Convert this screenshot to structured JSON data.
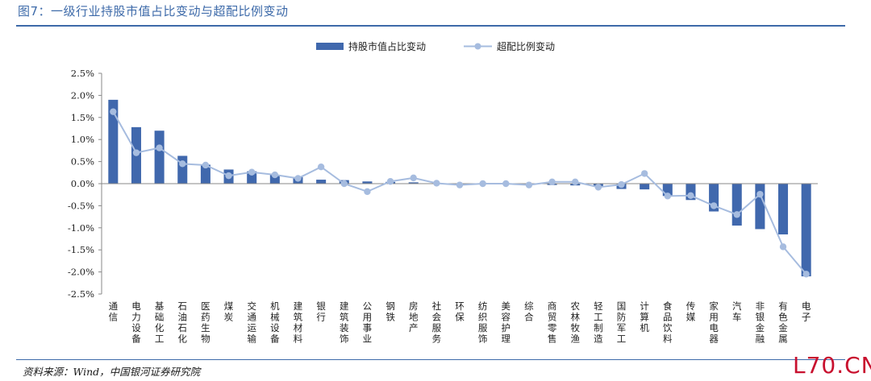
{
  "header": {
    "title": "图7：一级行业持股市值占比变动与超配比例变动"
  },
  "footer": {
    "source": "资料来源：Wind，中国银河证券研究院",
    "watermark": "L70.CN"
  },
  "colors": {
    "bar": "#4068ad",
    "line": "#a6bcdf",
    "axis": "#888888",
    "accent": "#3d6aa9"
  },
  "chart_data": {
    "type": "bar",
    "categories": [
      "通信",
      "电力设备",
      "基础化工",
      "石油石化",
      "医药生物",
      "煤炭",
      "交通运输",
      "机械设备",
      "建筑材料",
      "银行",
      "建筑装饰",
      "公用事业",
      "钢铁",
      "房地产",
      "社会服务",
      "环保",
      "纺织服饰",
      "美容护理",
      "综合",
      "商贸零售",
      "农林牧渔",
      "轻工制造",
      "国防军工",
      "计算机",
      "食品饮料",
      "传媒",
      "家用电器",
      "汽车",
      "非银金融",
      "有色金属",
      "电子"
    ],
    "series": [
      {
        "name": "持股市值占比变动",
        "type": "bar",
        "values": [
          1.9,
          1.28,
          1.2,
          0.63,
          0.43,
          0.32,
          0.28,
          0.2,
          0.15,
          0.09,
          0.08,
          0.05,
          0.04,
          0.03,
          0.01,
          -0.01,
          -0.01,
          -0.01,
          -0.02,
          -0.03,
          -0.04,
          -0.06,
          -0.12,
          -0.13,
          -0.28,
          -0.37,
          -0.63,
          -0.95,
          -1.03,
          -1.15,
          -2.1
        ]
      },
      {
        "name": "超配比例变动",
        "type": "line",
        "values": [
          1.63,
          0.7,
          0.81,
          0.45,
          0.42,
          0.18,
          0.26,
          0.2,
          0.12,
          0.38,
          0.0,
          -0.18,
          0.05,
          0.13,
          0.01,
          -0.03,
          0.0,
          0.0,
          -0.03,
          0.04,
          0.04,
          -0.08,
          -0.02,
          0.23,
          -0.28,
          -0.27,
          -0.5,
          -0.7,
          -0.24,
          -1.43,
          -2.05
        ]
      }
    ],
    "yticks": [
      "2.5%",
      "2.0%",
      "1.5%",
      "1.0%",
      "0.5%",
      "0.0%",
      "-0.5%",
      "-1.0%",
      "-1.5%",
      "-2.0%",
      "-2.5%"
    ],
    "ylim": [
      -2.5,
      2.5
    ],
    "legend": "top-center",
    "grid": false
  }
}
